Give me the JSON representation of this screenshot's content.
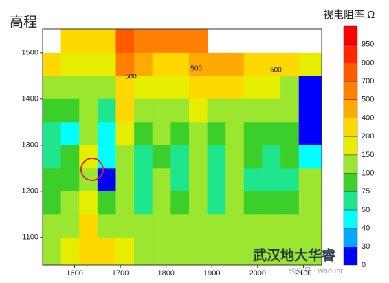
{
  "chart_data": {
    "type": "heatmap",
    "title": "视电阻率 Ω",
    "y_label": "高程",
    "xlim": [
      1530,
      2140
    ],
    "ylim": [
      1040,
      1552
    ],
    "xticks": [
      1600,
      1700,
      1800,
      1900,
      2000,
      2100
    ],
    "yticks": [
      1100,
      1200,
      1300,
      1400,
      1500
    ],
    "x": [
      1550,
      1590,
      1630,
      1670,
      1710,
      1750,
      1790,
      1830,
      1870,
      1910,
      1950,
      1990,
      2030,
      2070,
      2110
    ],
    "y": [
      1525,
      1475,
      1425,
      1375,
      1325,
      1275,
      1225,
      1175,
      1125,
      1075
    ],
    "z": [
      [
        null,
        300,
        250,
        250,
        700,
        600,
        600,
        500,
        500,
        null,
        null,
        null,
        null,
        null,
        null
      ],
      [
        200,
        150,
        150,
        150,
        500,
        400,
        300,
        300,
        400,
        400,
        400,
        300,
        300,
        200,
        150
      ],
      [
        100,
        100,
        120,
        100,
        250,
        150,
        150,
        150,
        200,
        200,
        200,
        150,
        150,
        120,
        20
      ],
      [
        75,
        75,
        110,
        60,
        200,
        100,
        110,
        100,
        150,
        120,
        130,
        110,
        100,
        110,
        10
      ],
      [
        60,
        40,
        100,
        45,
        150,
        80,
        100,
        75,
        110,
        90,
        110,
        90,
        80,
        90,
        5
      ],
      [
        70,
        75,
        150,
        40,
        130,
        60,
        90,
        70,
        110,
        70,
        100,
        80,
        70,
        80,
        40
      ],
      [
        80,
        80,
        140,
        20,
        110,
        60,
        100,
        70,
        100,
        70,
        100,
        70,
        70,
        60,
        100
      ],
      [
        90,
        100,
        170,
        75,
        110,
        60,
        100,
        80,
        100,
        70,
        100,
        90,
        80,
        90,
        100
      ],
      [
        110,
        130,
        220,
        140,
        120,
        100,
        110,
        110,
        120,
        110,
        120,
        110,
        110,
        120,
        110
      ],
      [
        120,
        170,
        250,
        200,
        150,
        130,
        130,
        130,
        130,
        130,
        130,
        130,
        130,
        130,
        130
      ]
    ],
    "levels": [
      0,
      30,
      40,
      50,
      75,
      100,
      150,
      200,
      400,
      500,
      700,
      900,
      950
    ],
    "colors": [
      "#0000ff",
      "#00a8ff",
      "#00ffff",
      "#1ee68c",
      "#3ccf2a",
      "#9be62e",
      "#e6ee00",
      "#ffd800",
      "#ffaa00",
      "#ff8000",
      "#ff5a00",
      "#ff2800",
      "#ff0000"
    ],
    "annotations": [
      {
        "text": "500",
        "x": 1723,
        "y": 1448
      },
      {
        "text": "500",
        "x": 1866,
        "y": 1466
      },
      {
        "text": "500",
        "x": 2040,
        "y": 1463
      }
    ],
    "watermark": {
      "text": "武汉地大华睿",
      "subtext": "公众号 · wnduhr"
    }
  }
}
